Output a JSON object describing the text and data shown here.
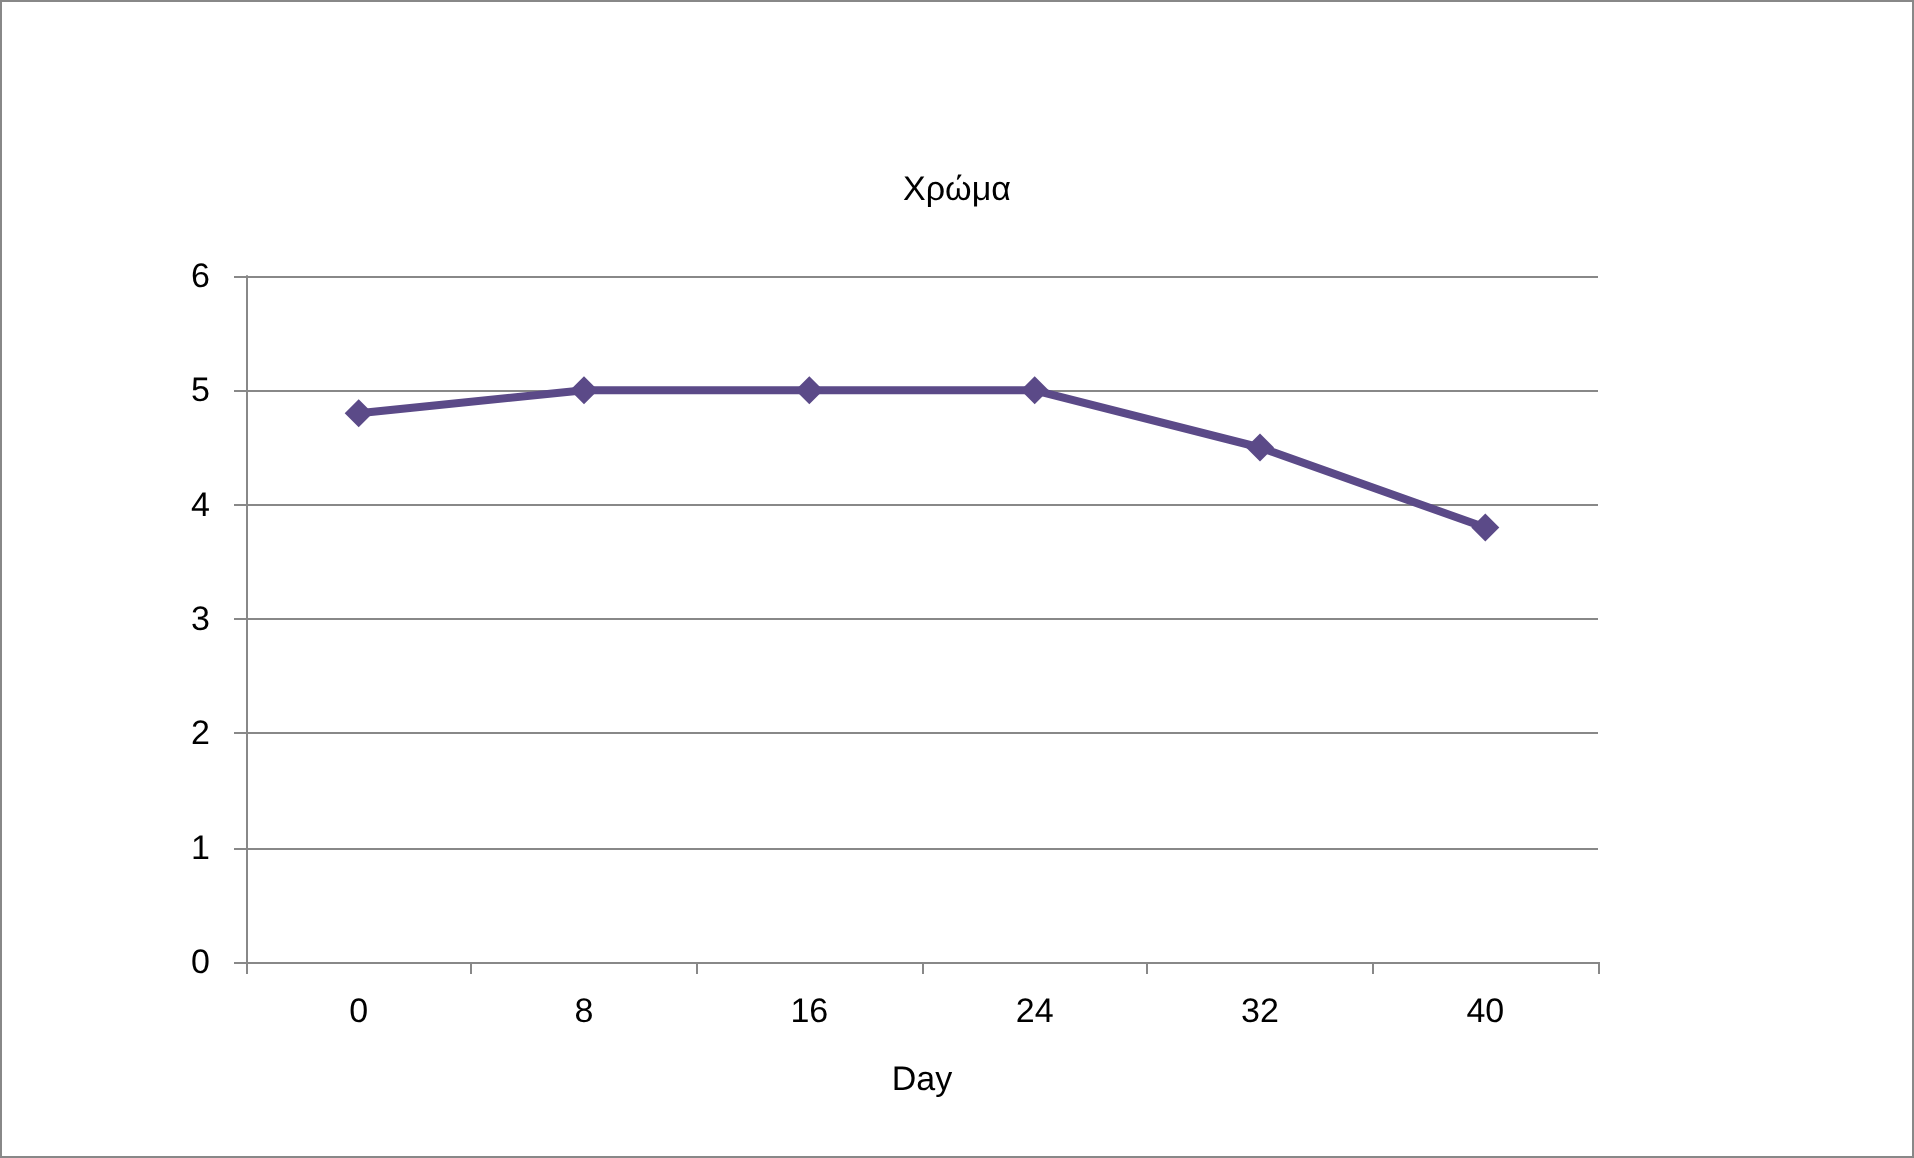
{
  "chart_data": {
    "type": "line",
    "title": "Χρώμα",
    "xlabel": "Day",
    "categories": [
      "0",
      "8",
      "16",
      "24",
      "32",
      "40"
    ],
    "series": [
      {
        "color": "#5b4a88",
        "values": [
          4.8,
          5,
          5,
          5,
          4.5,
          3.8
        ]
      }
    ],
    "ylim": [
      0,
      6
    ],
    "yticks": [
      0,
      1,
      2,
      3,
      4,
      5,
      6
    ],
    "grid": "y",
    "marker": "diamond",
    "line_style": "solid"
  }
}
